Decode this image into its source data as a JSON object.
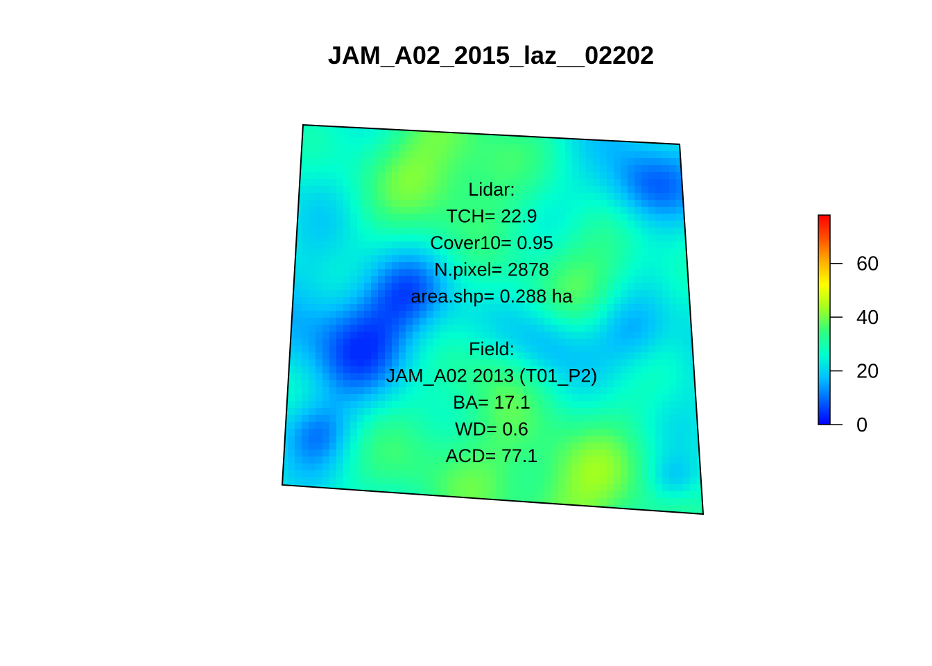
{
  "chart_data": {
    "type": "heatmap",
    "title": "JAM_A02_2015_laz__02202",
    "xlabel": "",
    "ylabel": "",
    "color_scale": {
      "min": 0,
      "max": 78,
      "ticks": [
        0,
        20,
        40,
        60
      ],
      "tick_labels": [
        "0",
        "20",
        "40",
        "60"
      ],
      "palette": [
        "#0000ff",
        "#0060ff",
        "#00c0ff",
        "#00ffd0",
        "#30ff80",
        "#a0ff20",
        "#ffff00",
        "#ffb000",
        "#ff5000",
        "#ff0000"
      ]
    },
    "heatmap_range": [
      4,
      45
    ],
    "annotations": {
      "lidar": [
        "Lidar:",
        "TCH= 22.9",
        "Cover10= 0.95",
        "N.pixel= 2878",
        "area.shp= 0.288 ha"
      ],
      "field": [
        "Field:",
        "JAM_A02 2013 (T01_P2)",
        "BA= 17.1",
        "WD= 0.6",
        "ACD= 77.1"
      ]
    },
    "legend_placement": "right",
    "grid": false
  }
}
